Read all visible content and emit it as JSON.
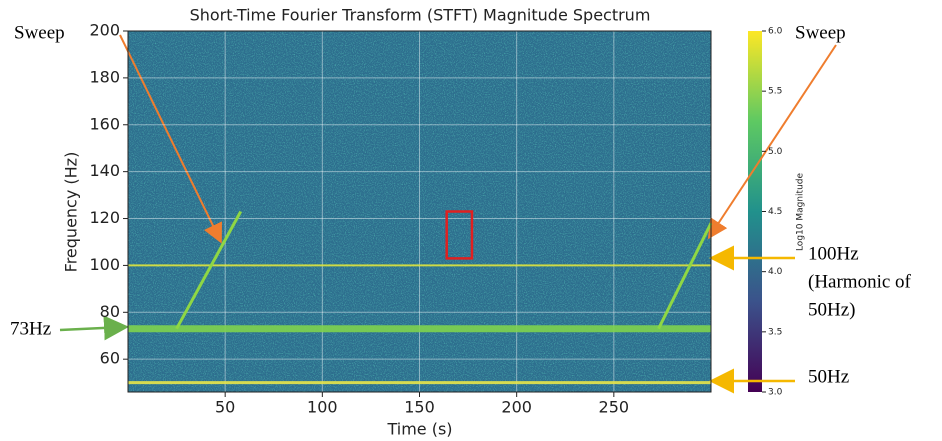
{
  "chart_data": {
    "type": "spectrogram",
    "title": "Short-Time Fourier Transform (STFT) Magnitude Spectrum",
    "x_label": "Time (s)",
    "y_label": "Frequency (Hz)",
    "xlim": [
      0,
      300
    ],
    "xticks": [
      50,
      100,
      150,
      200,
      250
    ],
    "ylim": [
      46,
      200
    ],
    "yticks": [
      60,
      80,
      100,
      120,
      140,
      160,
      180,
      200
    ],
    "grid": true,
    "tones": [
      50,
      73,
      100
    ],
    "sweeps": [
      {
        "x": [
          25,
          58
        ],
        "y": [
          73,
          123
        ]
      },
      {
        "x": [
          273,
          300
        ],
        "y": [
          73,
          118
        ]
      }
    ],
    "highlight": {
      "x": [
        164,
        177
      ],
      "y": [
        103,
        123
      ],
      "color": "#e02020"
    },
    "colorbar": {
      "label": "Log10 Magnitude",
      "lim": [
        3.0,
        6.0
      ],
      "ticks": [
        {
          "value": 3.0,
          "label": "3.0"
        },
        {
          "value": 3.5,
          "label": "3.5"
        },
        {
          "value": 4.0,
          "label": "4.0"
        },
        {
          "value": 4.5,
          "label": "4.5"
        },
        {
          "value": 5.0,
          "label": "5.0"
        },
        {
          "value": 5.5,
          "label": "5.5"
        },
        {
          "value": 6.0,
          "label": "6.0"
        }
      ]
    },
    "annotations": [
      {
        "lines": [
          "Sweep"
        ]
      },
      {
        "lines": [
          "Sweep"
        ]
      },
      {
        "lines": [
          "73Hz"
        ]
      },
      {
        "lines": [
          "100Hz",
          "(Harmonic of",
          "50Hz)"
        ]
      },
      {
        "lines": [
          "50Hz"
        ]
      }
    ]
  }
}
